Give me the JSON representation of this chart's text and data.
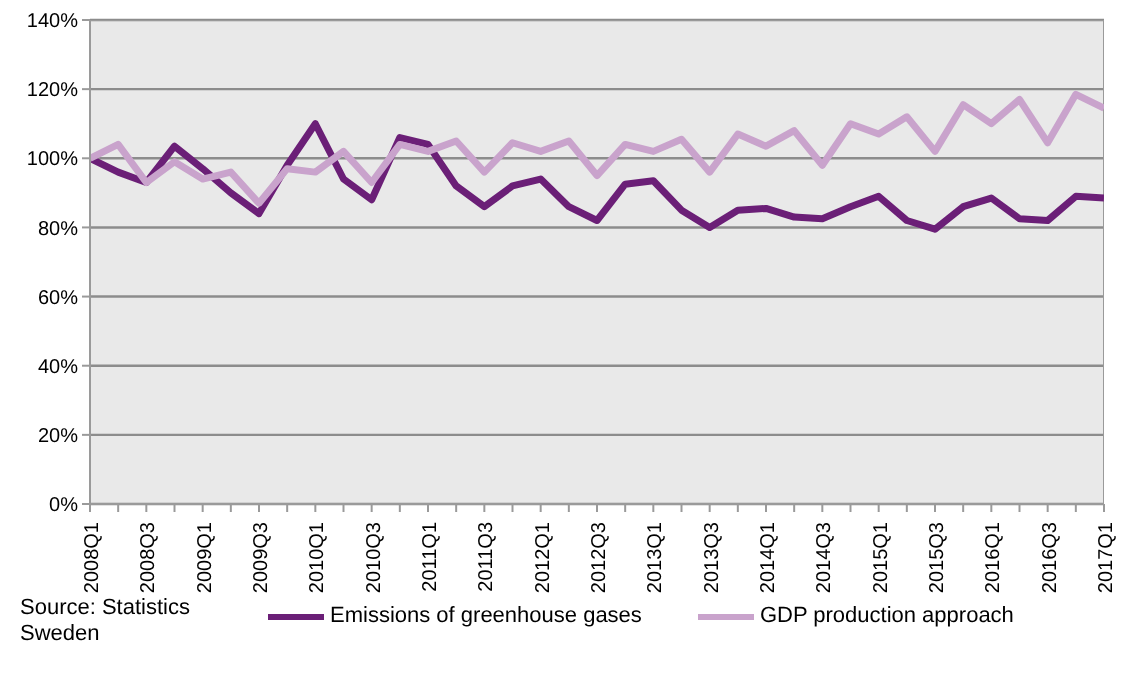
{
  "chart_data": {
    "type": "line",
    "categories": [
      "2008Q1",
      null,
      "2008Q3",
      null,
      "2009Q1",
      null,
      "2009Q3",
      null,
      "2010Q1",
      null,
      "2010Q3",
      null,
      "2011Q1",
      null,
      "2011Q3",
      null,
      "2012Q1",
      null,
      "2012Q3",
      null,
      "2013Q1",
      null,
      "2013Q3",
      null,
      "2014Q1",
      null,
      "2014Q3",
      null,
      "2015Q1",
      null,
      "2015Q3",
      null,
      "2016Q1",
      null,
      "2016Q3",
      null,
      "2017Q1"
    ],
    "series": [
      {
        "name": "Emissions of greenhouse gases",
        "color": "#6b1f77",
        "values": [
          100,
          96,
          93,
          103.5,
          97,
          90,
          84,
          98,
          110,
          94,
          88,
          106,
          104,
          92,
          86,
          92,
          94,
          86,
          82,
          92.5,
          93.5,
          85,
          80,
          85,
          85.5,
          83,
          82.5,
          86,
          89,
          82,
          79.5,
          86,
          88.5,
          82.5,
          82,
          89,
          88.5
        ]
      },
      {
        "name": "GDP production approach",
        "color": "#c9a3cc",
        "values": [
          100,
          104,
          93,
          99,
          94,
          96,
          87,
          97,
          96,
          102,
          93,
          104,
          102,
          105,
          96,
          104.5,
          102,
          105,
          95,
          104,
          102,
          105.5,
          96,
          107,
          103.5,
          108,
          98,
          110,
          107,
          112,
          102,
          115.5,
          110,
          117,
          104.5,
          118.5,
          114.5
        ]
      }
    ],
    "ylim": [
      0,
      140
    ],
    "yticks": [
      {
        "value": 0,
        "label": "0%"
      },
      {
        "value": 20,
        "label": "20%"
      },
      {
        "value": 40,
        "label": "40%"
      },
      {
        "value": 60,
        "label": "60%"
      },
      {
        "value": 80,
        "label": "80%"
      },
      {
        "value": 100,
        "label": "100%"
      },
      {
        "value": 120,
        "label": "120%"
      },
      {
        "value": 140,
        "label": "140%"
      }
    ],
    "grid": "y",
    "legend": "bottom",
    "marker": "none",
    "line_style": "solid",
    "annotations": [
      "Source: Statistics Sweden"
    ]
  }
}
